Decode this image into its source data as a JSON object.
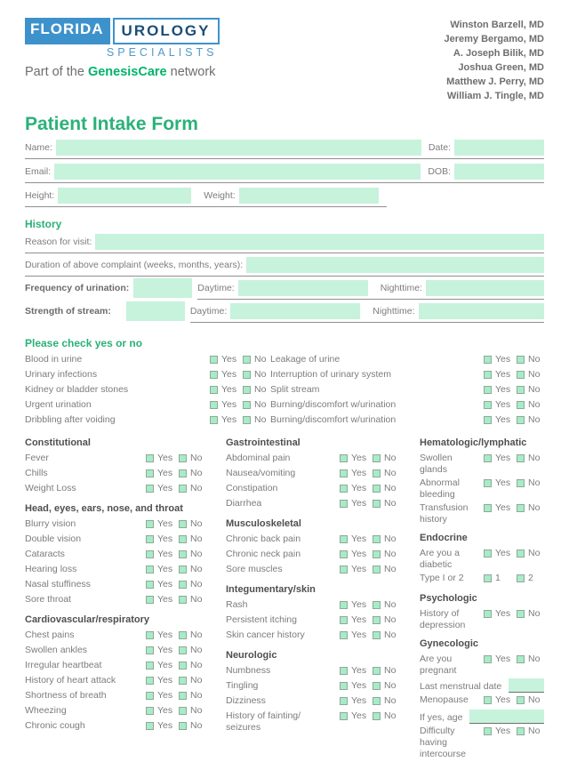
{
  "header": {
    "logo": {
      "florida": "FLORIDA",
      "urology": "UROLOGY",
      "specialists": "SPECIALISTS",
      "tagline_prefix": "Part of the ",
      "tagline_brand": "GenesisCare",
      "tagline_suffix": " network"
    },
    "doctors": [
      "Winston Barzell, MD",
      "Jeremy Bergamo, MD",
      "A. Joseph Bilik, MD",
      "Joshua Green, MD",
      "Matthew J. Perry, MD",
      "William J. Tingle, MD"
    ]
  },
  "title": "Patient Intake Form",
  "patient_fields": {
    "name_label": "Name:",
    "date_label": "Date:",
    "email_label": "Email:",
    "dob_label": "DOB:",
    "height_label": "Height:",
    "weight_label": "Weight:"
  },
  "history": {
    "heading": "History",
    "reason_label": "Reason for visit:",
    "duration_label": "Duration of above complaint (weeks, months, years):",
    "frequency_label": "Frequency of urination:",
    "strength_label": "Strength of stream:",
    "daytime_label": "Daytime:",
    "nighttime_label": "Nighttime:"
  },
  "check_section": {
    "heading": "Please check yes or no",
    "yes_label": "Yes",
    "no_label": "No",
    "left": [
      "Blood in urine",
      "Urinary infections",
      "Kidney or bladder stones",
      "Urgent urination",
      "Dribbling after voiding"
    ],
    "right": [
      "Leakage of urine",
      "Interruption of urinary system",
      "Split stream",
      "Burning/discomfort w/urination",
      "Burning/discomfort w/urination"
    ]
  },
  "review_columns": [
    {
      "groups": [
        {
          "title": "Constitutional",
          "items": [
            {
              "label": "Fever"
            },
            {
              "label": "Chills"
            },
            {
              "label": "Weight Loss"
            }
          ]
        },
        {
          "title": "Head, eyes, ears, nose, and throat",
          "items": [
            {
              "label": "Blurry vision"
            },
            {
              "label": "Double vision"
            },
            {
              "label": "Cataracts"
            },
            {
              "label": "Hearing loss"
            },
            {
              "label": "Nasal stuffiness"
            },
            {
              "label": "Sore throat"
            }
          ]
        },
        {
          "title": "Cardiovascular/respiratory",
          "items": [
            {
              "label": "Chest pains"
            },
            {
              "label": "Swollen ankles"
            },
            {
              "label": "Irregular heartbeat"
            },
            {
              "label": "History of heart attack"
            },
            {
              "label": "Shortness of breath"
            },
            {
              "label": "Wheezing"
            },
            {
              "label": "Chronic cough"
            }
          ]
        }
      ]
    },
    {
      "groups": [
        {
          "title": "Gastrointestinal",
          "items": [
            {
              "label": "Abdominal pain"
            },
            {
              "label": "Nausea/vomiting"
            },
            {
              "label": "Constipation"
            },
            {
              "label": "Diarrhea"
            }
          ]
        },
        {
          "title": "Musculoskeletal",
          "items": [
            {
              "label": "Chronic back pain"
            },
            {
              "label": "Chronic neck pain"
            },
            {
              "label": "Sore muscles"
            }
          ]
        },
        {
          "title": "Integumentary/skin",
          "items": [
            {
              "label": "Rash"
            },
            {
              "label": "Persistent itching"
            },
            {
              "label": "Skin cancer history"
            }
          ]
        },
        {
          "title": "Neurologic",
          "items": [
            {
              "label": "Numbness"
            },
            {
              "label": "Tingling"
            },
            {
              "label": "Dizziness"
            },
            {
              "label": "History of fainting/ seizures"
            }
          ]
        }
      ]
    },
    {
      "groups": [
        {
          "title": "Hematologic/lymphatic",
          "items": [
            {
              "label": "Swollen glands"
            },
            {
              "label": "Abnormal bleeding"
            },
            {
              "label": "Transfusion history"
            }
          ]
        },
        {
          "title": "Endocrine",
          "items": [
            {
              "label": "Are you a diabetic"
            },
            {
              "label": "Type I or 2",
              "options": [
                "1",
                "2"
              ]
            }
          ]
        },
        {
          "title": "Psychologic",
          "items": [
            {
              "label": "History of depression"
            }
          ]
        },
        {
          "title": "Gynecologic",
          "items": [
            {
              "label": "Are you pregnant"
            },
            {
              "label": "Last menstrual date",
              "type": "field"
            },
            {
              "label": "Menopause"
            },
            {
              "label": "If yes, age",
              "type": "field"
            },
            {
              "label": "Difficulty having intercourse"
            }
          ]
        }
      ]
    }
  ],
  "colors": {
    "accent_green": "#2bb178",
    "brand_green": "#00b36b",
    "field_mint": "#c7f2db",
    "checkbox_fill": "#a6ecc6",
    "logo_blue": "#3e92cc",
    "logo_navy": "#1c4e79"
  }
}
